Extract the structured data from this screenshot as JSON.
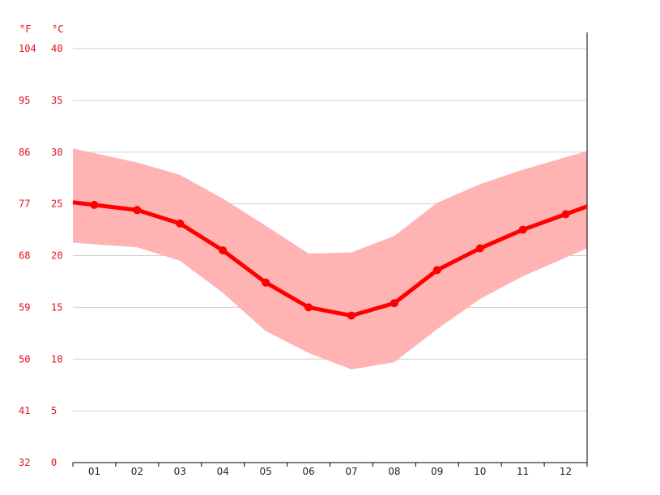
{
  "chart_data": {
    "type": "line",
    "unit_labels": {
      "fahrenheit": "°F",
      "celsius": "°C"
    },
    "x_categories": [
      "01",
      "02",
      "03",
      "04",
      "05",
      "06",
      "07",
      "08",
      "09",
      "10",
      "11",
      "12"
    ],
    "y_ticks_celsius": [
      "0",
      "5",
      "10",
      "15",
      "20",
      "25",
      "30",
      "35",
      "40"
    ],
    "y_ticks_fahrenheit": [
      "32",
      "41",
      "50",
      "59",
      "68",
      "77",
      "86",
      "95",
      "104"
    ],
    "ylim": [
      0,
      40
    ],
    "grid": true,
    "series": [
      {
        "values": [
          24.9,
          24.4,
          23.1,
          20.5,
          17.4,
          15.0,
          14.2,
          15.4,
          18.6,
          20.7,
          22.5,
          24.0
        ]
      }
    ],
    "band": {
      "upper": [
        29.9,
        29.0,
        27.8,
        25.5,
        22.9,
        20.2,
        20.3,
        21.9,
        25.1,
        26.9,
        28.3,
        29.5
      ],
      "lower": [
        21.1,
        20.8,
        19.5,
        16.4,
        12.7,
        10.6,
        9.0,
        9.7,
        12.9,
        15.8,
        18.0,
        19.8
      ]
    },
    "colors": {
      "line": "#ff0000",
      "band": "#ffb3b3",
      "ticks": "#e0121b",
      "grid": "#cfcfcf"
    }
  }
}
